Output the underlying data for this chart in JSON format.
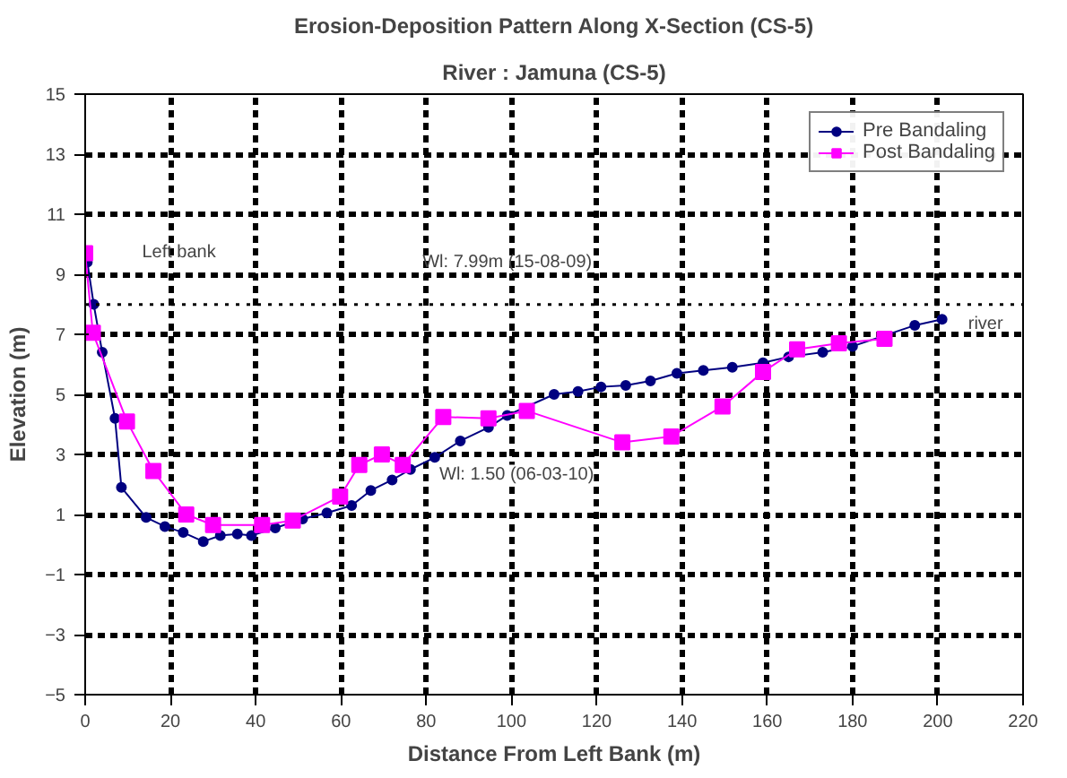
{
  "chart_data": {
    "type": "line",
    "title": "Erosion-Deposition Pattern Along X-Section (CS-5)",
    "subtitle": "River : Jamuna (CS-5)",
    "xlabel": "Distance From Left Bank (m)",
    "ylabel": "Elevation (m)",
    "xlim": [
      0,
      220
    ],
    "xticks": [
      0,
      20,
      40,
      60,
      80,
      100,
      120,
      140,
      160,
      180,
      200,
      220
    ],
    "ylim": [
      -5,
      15
    ],
    "yticks": [
      -5,
      -3,
      -1,
      1,
      3,
      5,
      7,
      9,
      11,
      13,
      15
    ],
    "grid": true,
    "legend": "top right",
    "line_style": "solid",
    "series": [
      {
        "name": "Pre Bandaling",
        "color": "#000080",
        "marker": "circle",
        "x": [
          0.5,
          2,
          4,
          7,
          8.5,
          14.3,
          18.7,
          23,
          27.7,
          31.7,
          35.7,
          39,
          44.6,
          51,
          56.7,
          62.5,
          67,
          72,
          76.3,
          82,
          88,
          94.6,
          99,
          110,
          115.6,
          121,
          126.8,
          132.6,
          138.8,
          145,
          151.8,
          159,
          165,
          173,
          180,
          194.6,
          201
        ],
        "values": [
          9.4,
          8.0,
          6.4,
          4.2,
          1.9,
          0.9,
          0.6,
          0.4,
          0.1,
          0.3,
          0.35,
          0.3,
          0.55,
          0.85,
          1.05,
          1.3,
          1.8,
          2.15,
          2.5,
          2.9,
          3.45,
          3.9,
          4.3,
          5.0,
          5.1,
          5.25,
          5.3,
          5.45,
          5.7,
          5.8,
          5.9,
          6.05,
          6.25,
          6.4,
          6.6,
          7.3,
          7.5
        ]
      },
      {
        "name": "Post Bandaling",
        "color": "#ff00ff",
        "marker": "square",
        "x": [
          0,
          1.8,
          9.8,
          16,
          23.7,
          30,
          41.5,
          48.7,
          59.8,
          64.3,
          69.6,
          74.5,
          84,
          94.6,
          103.6,
          126,
          137.5,
          149.5,
          159,
          167,
          176.8,
          187.5
        ],
        "values": [
          9.7,
          7.05,
          4.1,
          2.45,
          1.0,
          0.65,
          0.65,
          0.8,
          1.6,
          2.65,
          3.0,
          2.65,
          4.25,
          4.2,
          4.45,
          3.4,
          3.6,
          4.6,
          5.75,
          6.5,
          6.7,
          6.85
        ]
      }
    ],
    "ref_lines": [
      {
        "axis": "y",
        "value": 7.99,
        "label": "Wl: 7.99m (15-08-09)",
        "line_style": "dotted",
        "color": "#000000"
      }
    ],
    "annotations": [
      "Left bank",
      "Wl: 1.50 (06-03-10)",
      "river"
    ]
  }
}
